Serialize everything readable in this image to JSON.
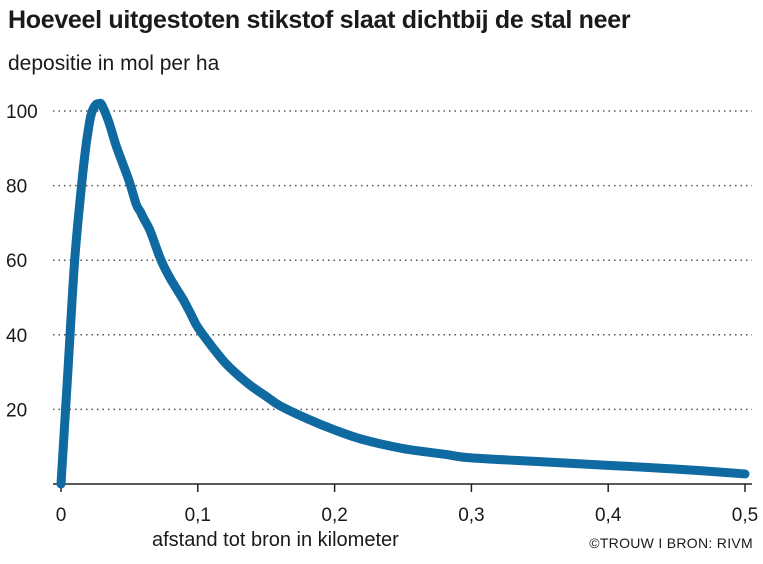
{
  "title": "Hoeveel uitgestoten stikstof slaat dichtbij de stal neer",
  "subtitle": "depositie in mol per ha",
  "credit": "©TROUW I BRON: RIVM",
  "colors": {
    "line": "#0e6aa0",
    "grid": "#555555",
    "text": "#1a1a1a"
  },
  "chart_data": {
    "type": "line",
    "title": "Hoeveel uitgestoten stikstof slaat dichtbij de stal neer",
    "ylabel": "depositie in mol per ha",
    "xlabel": "afstand tot bron in kilometer",
    "xlim": [
      0,
      0.5
    ],
    "ylim": [
      0,
      100
    ],
    "x_ticks": [
      "0",
      "0,1",
      "0,2",
      "0,3",
      "0,4",
      "0,5"
    ],
    "y_ticks": [
      "20",
      "40",
      "60",
      "80",
      "100"
    ],
    "grid": "horizontal dotted",
    "series": [
      {
        "x": [
          0,
          0.005,
          0.01,
          0.015,
          0.018,
          0.02,
          0.022,
          0.025,
          0.028,
          0.03,
          0.035,
          0.04,
          0.045,
          0.05,
          0.055,
          0.058,
          0.06,
          0.065,
          0.07,
          0.072,
          0.075,
          0.08,
          0.085,
          0.09,
          0.095,
          0.1,
          0.11,
          0.12,
          0.13,
          0.14,
          0.15,
          0.16,
          0.18,
          0.2,
          0.22,
          0.25,
          0.28,
          0.3,
          0.35,
          0.4,
          0.45,
          0.5
        ],
        "y": [
          0,
          30,
          60,
          80,
          90,
          95,
          99,
          101.5,
          102,
          101.5,
          97,
          91,
          86,
          81,
          75,
          73,
          71.5,
          68,
          63,
          61,
          58.5,
          55,
          52,
          49,
          45.5,
          42,
          37,
          32.5,
          29,
          26,
          23.5,
          21,
          17.5,
          14.5,
          12,
          9.5,
          8,
          7,
          6,
          5,
          4,
          2.7
        ]
      }
    ]
  }
}
